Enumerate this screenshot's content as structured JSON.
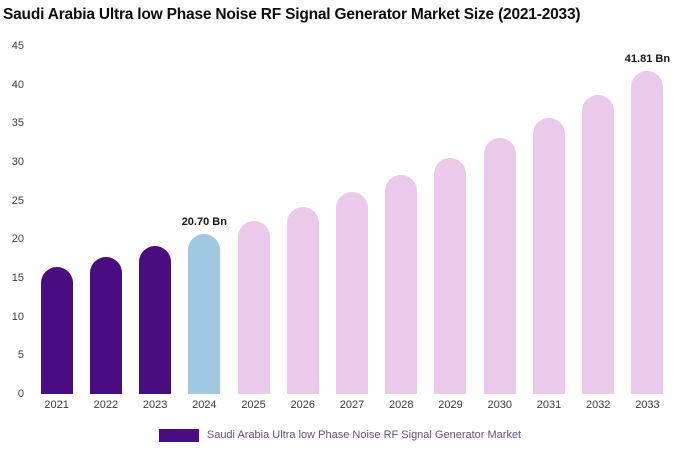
{
  "title": "Saudi Arabia Ultra low Phase Noise RF Signal Generator Market Size (2021-2033)",
  "legend": {
    "label": "Saudi Arabia Ultra low Phase Noise RF Signal Generator Market",
    "swatch_color": "#4a0d80",
    "text_color": "#6b4f7d"
  },
  "colors": {
    "historical": "#4a0d80",
    "current": "#a0c8e2",
    "forecast": "#eac9ea"
  },
  "chart_data": {
    "type": "bar",
    "title": "Saudi Arabia Ultra low Phase Noise RF Signal Generator Market Size (2021-2033)",
    "xlabel": "",
    "ylabel": "",
    "ylim": [
      0,
      45
    ],
    "yticks": [
      0,
      5,
      10,
      15,
      20,
      25,
      30,
      35,
      40,
      45
    ],
    "grid": false,
    "legend_position": "bottom",
    "categories": [
      "2021",
      "2022",
      "2023",
      "2024",
      "2025",
      "2026",
      "2027",
      "2028",
      "2029",
      "2030",
      "2031",
      "2032",
      "2033"
    ],
    "values": [
      16.38,
      17.71,
      19.15,
      20.7,
      22.38,
      24.2,
      26.16,
      28.29,
      30.58,
      33.07,
      35.75,
      38.66,
      41.81
    ],
    "bar_colors": [
      "#4a0d80",
      "#4a0d80",
      "#4a0d80",
      "#a0c8e2",
      "#eac9ea",
      "#eac9ea",
      "#eac9ea",
      "#eac9ea",
      "#eac9ea",
      "#eac9ea",
      "#eac9ea",
      "#eac9ea",
      "#eac9ea"
    ],
    "annotations": [
      {
        "category": "2024",
        "text": "20.70 Bn"
      },
      {
        "category": "2033",
        "text": "41.81 Bn"
      }
    ]
  }
}
